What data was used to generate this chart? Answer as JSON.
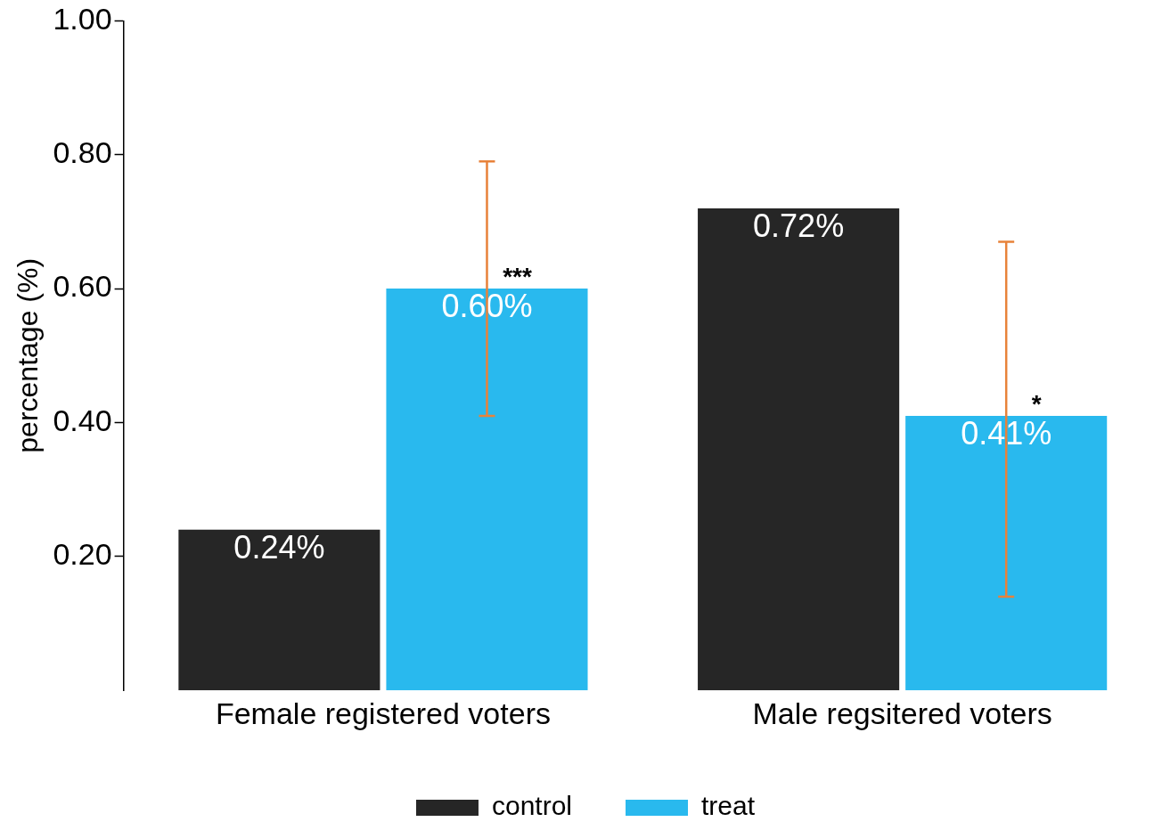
{
  "chart_data": {
    "type": "bar",
    "ylabel": "percentage (%)",
    "categories": [
      "Female registered voters",
      "Male regsitered voters"
    ],
    "series": [
      {
        "name": "control",
        "color": "#262626",
        "values": [
          0.24,
          0.72
        ],
        "value_labels": [
          "0.24%",
          "0.72%"
        ]
      },
      {
        "name": "treat",
        "color": "#29b9ee",
        "values": [
          0.6,
          0.41
        ],
        "value_labels": [
          "0.60%",
          "0.41%"
        ],
        "errors": [
          [
            0.41,
            0.79
          ],
          [
            0.14,
            0.67
          ]
        ]
      }
    ],
    "ylim": [
      0,
      1
    ],
    "yticks": [
      {
        "value": 0.2,
        "label": "0.20"
      },
      {
        "value": 0.4,
        "label": "0.40"
      },
      {
        "value": 0.6,
        "label": "0.60"
      },
      {
        "value": 0.8,
        "label": "0.80"
      },
      {
        "value": 1,
        "label": "1.00"
      }
    ],
    "annotations": [
      "***",
      "*"
    ],
    "grid": false,
    "legend": "bottom"
  }
}
